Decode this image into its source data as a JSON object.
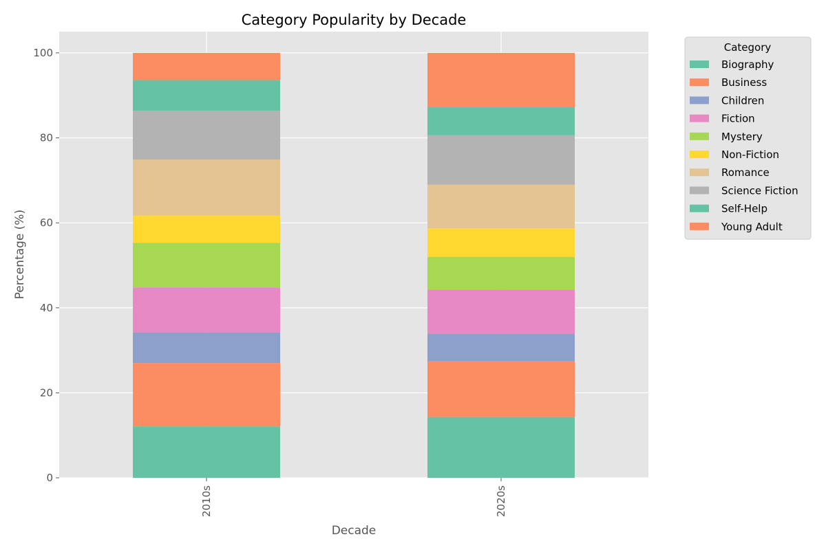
{
  "chart_data": {
    "type": "bar",
    "stacked": true,
    "title": "Category Popularity by Decade",
    "xlabel": "Decade",
    "ylabel": "Percentage (%)",
    "ylim": [
      0,
      105
    ],
    "yticks": [
      0,
      20,
      40,
      60,
      80,
      100
    ],
    "grid": true,
    "categories": [
      "2010s",
      "2020s"
    ],
    "legend": {
      "title": "Category",
      "placement": "outside-top-right"
    },
    "series": [
      {
        "name": "Biography",
        "color": "#66c2a5",
        "values": [
          12.1,
          14.3
        ]
      },
      {
        "name": "Business",
        "color": "#fc8d62",
        "values": [
          14.9,
          13.1
        ]
      },
      {
        "name": "Children",
        "color": "#8da0cb",
        "values": [
          7.2,
          6.5
        ]
      },
      {
        "name": "Fiction",
        "color": "#e78ac3",
        "values": [
          10.6,
          10.4
        ]
      },
      {
        "name": "Mystery",
        "color": "#a6d854",
        "values": [
          10.5,
          7.7
        ]
      },
      {
        "name": "Non-Fiction",
        "color": "#ffd92f",
        "values": [
          6.4,
          6.7
        ]
      },
      {
        "name": "Romance",
        "color": "#e5c494",
        "values": [
          13.2,
          10.3
        ]
      },
      {
        "name": "Science Fiction",
        "color": "#b3b3b3",
        "values": [
          11.5,
          11.6
        ]
      },
      {
        "name": "Self-Help",
        "color": "#66c2a5",
        "values": [
          7.2,
          6.6
        ]
      },
      {
        "name": "Young Adult",
        "color": "#fc8d62",
        "values": [
          6.4,
          12.8
        ]
      }
    ]
  }
}
